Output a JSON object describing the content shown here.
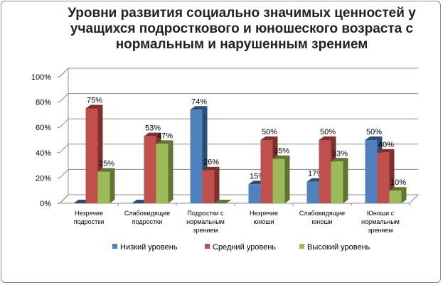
{
  "chart_data": {
    "type": "bar",
    "title": "Уровни развития социально значимых ценностей у учащихся подросткового и юношеского возраста с нормальным и нарушенным зрением",
    "categories": [
      [
        "Незрячие",
        "подростки"
      ],
      [
        "Слабовидящие",
        "подростки"
      ],
      [
        "Подростки с",
        "нормальным",
        "зрением"
      ],
      [
        "Незрячие",
        "юноши"
      ],
      [
        "Слабовидящие",
        "юноши"
      ],
      [
        "Юноши с",
        "нормальным",
        "зрением"
      ]
    ],
    "series": [
      {
        "name": "Низкий уровень",
        "color": "#4f81bd",
        "dark": "#2c4d75",
        "values": [
          0,
          0,
          74,
          15,
          17,
          50
        ]
      },
      {
        "name": "Средний уровень",
        "color": "#c0504d",
        "dark": "#7f2f2d",
        "values": [
          75,
          53,
          26,
          50,
          50,
          40
        ]
      },
      {
        "name": "Высокий уровень",
        "color": "#9bbb59",
        "dark": "#5f7530",
        "values": [
          25,
          47,
          0,
          35,
          33,
          10
        ]
      }
    ],
    "value_labels": [
      [
        "",
        "75%",
        "25%"
      ],
      [
        "",
        "53%",
        "47%"
      ],
      [
        "74%",
        "26%",
        ""
      ],
      [
        "15%",
        "50%",
        "35%"
      ],
      [
        "17%",
        "50%",
        "33%"
      ],
      [
        "50%",
        "40%",
        "10%"
      ]
    ],
    "yticks": [
      "0%",
      "20%",
      "40%",
      "60%",
      "80%",
      "100%"
    ],
    "ylim": [
      0,
      100
    ],
    "legend_position": "bottom",
    "grid": true
  }
}
